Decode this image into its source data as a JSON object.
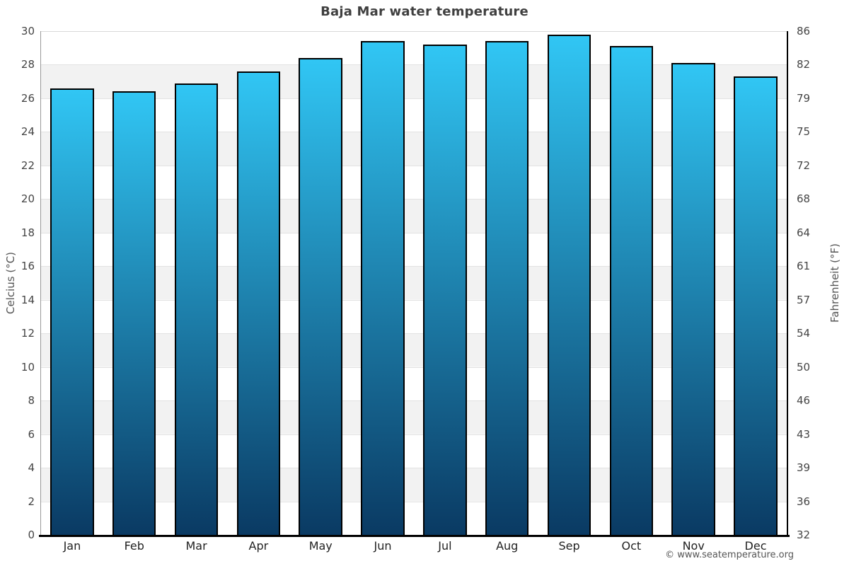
{
  "title": "Baja Mar water temperature",
  "footer": "© www.seatemperature.org",
  "chart_data": {
    "type": "bar",
    "title": "Baja Mar water temperature",
    "categories": [
      "Jan",
      "Feb",
      "Mar",
      "Apr",
      "May",
      "Jun",
      "Jul",
      "Aug",
      "Sep",
      "Oct",
      "Nov",
      "Dec"
    ],
    "series": [
      {
        "name": "Water temperature (°C)",
        "values": [
          26.6,
          26.4,
          26.9,
          27.6,
          28.4,
          29.4,
          29.2,
          29.4,
          29.8,
          29.1,
          28.1,
          27.3
        ]
      }
    ],
    "xlabel": "",
    "ylabel_left": "Celcius (°C)",
    "ylabel_right": "Fahrenheit (°F)",
    "ylim": [
      0,
      30
    ],
    "left_ticks": [
      30,
      28,
      26,
      24,
      22,
      20,
      18,
      16,
      14,
      12,
      10,
      8,
      6,
      4,
      2,
      0
    ],
    "right_ticks": [
      86,
      82,
      79,
      75,
      72,
      68,
      64,
      61,
      57,
      54,
      50,
      46,
      43,
      39,
      36,
      32
    ],
    "grid": "horizontal gridlines every 2°C over alternating white/grey bands",
    "legend": "none",
    "colors": {
      "bar_gradient_top": "#31c6f4",
      "bar_gradient_bottom": "#0a3a63",
      "bar_border": "#000000",
      "band_grey": "#f2f2f2",
      "gridline": "#e2e2e2",
      "axis_bottom": "#000000",
      "axis_right": "#000000",
      "axis_left": "#999999",
      "title_text": "#3f3f3f",
      "tick_text": "#444444",
      "month_text": "#222222",
      "footer_text": "#555555"
    }
  }
}
